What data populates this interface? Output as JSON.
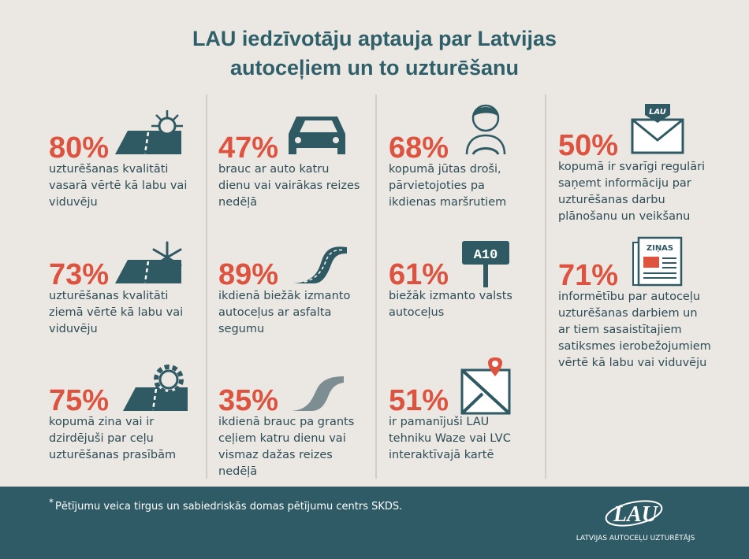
{
  "header": {
    "title": [
      "LAU iedzīvotāju aptauja par Latvijas",
      "autoceļiem un to uzturēšanu"
    ]
  },
  "columns": [
    {
      "items": [
        {
          "value": "80%",
          "text": [
            "uzturēšanas kvalitāti",
            "vasarā vērtē kā labu vai",
            "viduvēju"
          ]
        },
        {
          "value": "73%",
          "text": [
            "uzturēšanas kvalitāti",
            "ziemā vērtē kā labu vai",
            "viduvēju"
          ]
        },
        {
          "value": "75%",
          "text": [
            "kopumā zina vai ir",
            "dzirdējuši par ceļu",
            "uzturēšanas prasībām"
          ]
        }
      ]
    },
    {
      "items": [
        {
          "value": "47%",
          "text": [
            "brauc ar auto katru",
            "dienu vai vairākas reizes",
            "nedēļā"
          ]
        },
        {
          "value": "89%",
          "text": [
            "ikdienā biežāk izmanto",
            "autoceļus ar asfalta",
            "segumu"
          ]
        },
        {
          "value": "35%",
          "text": [
            "ikdienā brauc pa grants",
            "ceļiem katru dienu vai",
            "vismaz dažas reizes",
            "nedēļā"
          ]
        }
      ]
    },
    {
      "items": [
        {
          "value": "68%",
          "text": [
            "kopumā jūtas droši,",
            "pārvietojoties pa",
            "ikdienas maršrutiem"
          ]
        },
        {
          "value": "61%",
          "text": [
            "biežāk izmanto valsts",
            "autoceļus"
          ]
        },
        {
          "value": "51%",
          "text": [
            "ir pamanījuši LAU",
            "tehniku Waze vai LVC",
            "interaktīvajā kartē"
          ]
        }
      ]
    },
    {
      "items": [
        {
          "value": "50%",
          "text": [
            "kopumā ir svarīgi regulāri",
            "saņemt informāciju par",
            "uzturēšanas darbu",
            "plānošanu un veikšanu"
          ]
        },
        {
          "value": "71%",
          "text": [
            "informētību par autoceļu",
            "uzturēšanas darbiem un",
            "ar tiem sasaistītajiem",
            "satiksmes ierobežojumiem",
            "vērtē kā labu vai viduvēju"
          ]
        }
      ]
    }
  ],
  "icons": {
    "sign": "A10",
    "newspaper": "ZIŅAS",
    "envelope": "LAU"
  },
  "footer": {
    "note_mark": "*",
    "note": "Pētījumu veica tirgus un sabiedriskās domas pētījumu centrs SKDS.",
    "logo": "LAU",
    "organization": "LATVIJAS AUTOCEĻU UZTURĒTĀJS"
  }
}
